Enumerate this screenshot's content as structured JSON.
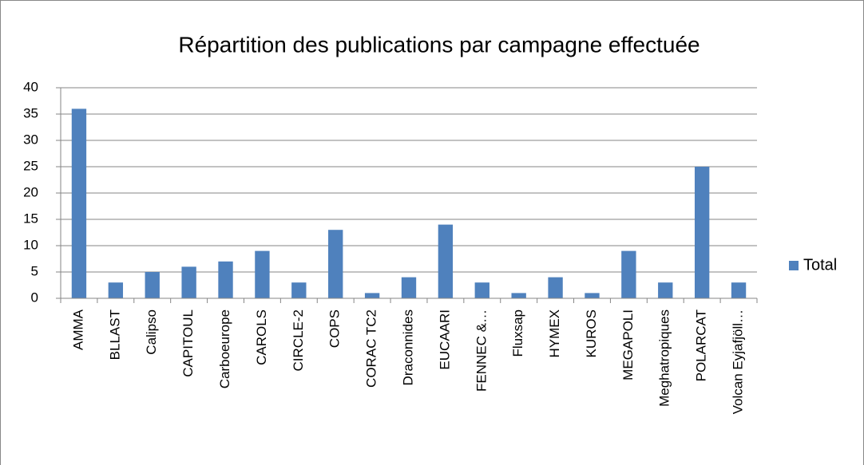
{
  "chart_data": {
    "type": "bar",
    "title": "Répartition des publications par campagne effectuée",
    "categories": [
      "AMMA",
      "BLLAST",
      "Calipso",
      "CAPITOUL",
      "Carboeurope",
      "CAROLS",
      "CIRCLE-2",
      "COPS",
      "CORAC TC2",
      "Draconnides",
      "EUCAARI",
      "FENNEC &…",
      "Fluxsap",
      "HYMEX",
      "KUROS",
      "MEGAPOLI",
      "Meghatropiques",
      "POLARCAT",
      "Volcan Eyjafjöll…"
    ],
    "series": [
      {
        "name": "Total",
        "color": "#4f81bd",
        "values": [
          36,
          3,
          5,
          6,
          7,
          9,
          3,
          13,
          1,
          4,
          14,
          3,
          1,
          4,
          1,
          9,
          3,
          25,
          3
        ]
      }
    ],
    "ylim": [
      0,
      40
    ],
    "yticks": [
      0,
      5,
      10,
      15,
      20,
      25,
      30,
      35,
      40
    ],
    "grid": true,
    "legend": "right"
  }
}
